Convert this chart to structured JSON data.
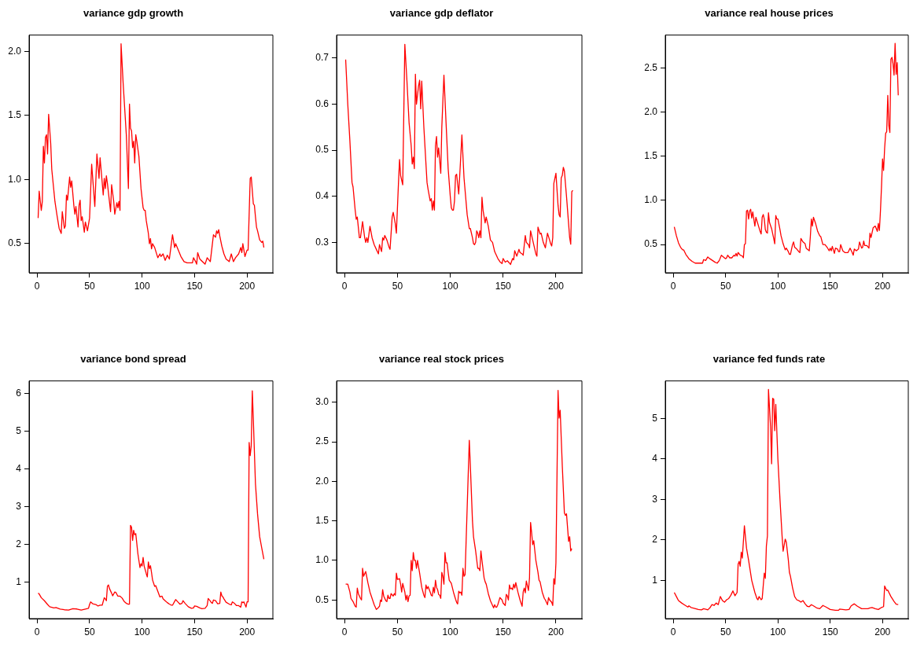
{
  "chart_data": [
    {
      "type": "line",
      "title": "variance gdp growth",
      "color": "#ff0000",
      "xlim": [
        -7.6,
        224.6
      ],
      "ylim": [
        0.273,
        2.128
      ],
      "xticks": [
        0,
        50,
        100,
        150,
        200
      ],
      "yticks": [
        0.5,
        {
          "value": 1,
          "label": "1.0"
        },
        1.5,
        {
          "value": 2,
          "label": "2.0"
        }
      ],
      "x": [
        1,
        2,
        4,
        5,
        6,
        7,
        8,
        9,
        10,
        11,
        13,
        14,
        17,
        19,
        21,
        23,
        24,
        26,
        27,
        28,
        29,
        31,
        32,
        33,
        35,
        36,
        37,
        39,
        40,
        41,
        42,
        43,
        45,
        46,
        48,
        50,
        52,
        55,
        57,
        59,
        60,
        62,
        63,
        64,
        65,
        66,
        67,
        70,
        71,
        73,
        74,
        76,
        77,
        78,
        79,
        80,
        82,
        85,
        87,
        88,
        89,
        90,
        91,
        92,
        93,
        94,
        95,
        97,
        99,
        101,
        102,
        103,
        104,
        106,
        107,
        108,
        109,
        110,
        112,
        115,
        117,
        118,
        120,
        122,
        124,
        126,
        129,
        131,
        132,
        135,
        137,
        140,
        143,
        148,
        149,
        151,
        152,
        153,
        155,
        160,
        162,
        165,
        168,
        170,
        171,
        172,
        173,
        174,
        176,
        178,
        180,
        183,
        185,
        187,
        189,
        192,
        194,
        195,
        196,
        198,
        200,
        201,
        203,
        204,
        206,
        207,
        208,
        209,
        210,
        212,
        214,
        215,
        216
      ],
      "values": [
        0.7,
        0.91,
        0.76,
        0.83,
        1.26,
        1.13,
        1.33,
        1.35,
        1.2,
        1.51,
        1.28,
        1.08,
        0.83,
        0.72,
        0.62,
        0.58,
        0.75,
        0.62,
        0.64,
        0.88,
        0.84,
        1.02,
        0.94,
        0.99,
        0.8,
        0.73,
        0.79,
        0.63,
        0.8,
        0.84,
        0.68,
        0.71,
        0.59,
        0.67,
        0.6,
        0.7,
        1.12,
        0.79,
        1.2,
        1.01,
        1.17,
        0.98,
        0.88,
        1.01,
        0.93,
        1.03,
        0.97,
        0.75,
        0.96,
        0.83,
        0.73,
        0.82,
        0.78,
        0.83,
        0.76,
        2.06,
        1.75,
        1.35,
        0.93,
        1.59,
        1.4,
        1.38,
        1.25,
        1.3,
        1.13,
        1.35,
        1.3,
        1.18,
        0.93,
        0.78,
        0.76,
        0.76,
        0.68,
        0.58,
        0.5,
        0.54,
        0.46,
        0.5,
        0.47,
        0.39,
        0.42,
        0.4,
        0.42,
        0.37,
        0.41,
        0.38,
        0.57,
        0.47,
        0.5,
        0.44,
        0.4,
        0.36,
        0.35,
        0.35,
        0.39,
        0.36,
        0.34,
        0.43,
        0.38,
        0.34,
        0.39,
        0.36,
        0.57,
        0.55,
        0.6,
        0.58,
        0.61,
        0.56,
        0.48,
        0.42,
        0.38,
        0.36,
        0.42,
        0.36,
        0.39,
        0.42,
        0.47,
        0.43,
        0.5,
        0.4,
        0.45,
        0.45,
        1.01,
        1.02,
        0.81,
        0.8,
        0.71,
        0.63,
        0.6,
        0.53,
        0.51,
        0.52,
        0.47
      ]
    },
    {
      "type": "line",
      "title": "variance gdp deflator",
      "color": "#ff0000",
      "xlim": [
        -7.6,
        224.6
      ],
      "ylim": [
        0.234,
        0.75
      ],
      "xticks": [
        0,
        50,
        100,
        150,
        200
      ],
      "yticks": [
        0.3,
        0.4,
        0.5,
        0.6,
        0.7
      ],
      "x": [
        1,
        3,
        5,
        7,
        8,
        10,
        11,
        12,
        14,
        15,
        17,
        19,
        20,
        21,
        22,
        24,
        26,
        28,
        30,
        32,
        33,
        35,
        36,
        37,
        38,
        40,
        42,
        43,
        45,
        46,
        48,
        49,
        51,
        52,
        53,
        55,
        57,
        59,
        61,
        63,
        64,
        65,
        66,
        67,
        68,
        70,
        71,
        72,
        73,
        75,
        77,
        78,
        79,
        81,
        82,
        83,
        84,
        85,
        86,
        87,
        88,
        89,
        91,
        92,
        94,
        96,
        98,
        100,
        101,
        102,
        103,
        104,
        105,
        106,
        108,
        110,
        111,
        113,
        116,
        118,
        119,
        121,
        122,
        123,
        124,
        125,
        126,
        127,
        128,
        129,
        130,
        131,
        133,
        134,
        136,
        138,
        140,
        142,
        145,
        147,
        149,
        150,
        152,
        154,
        156,
        157,
        159,
        160,
        161,
        163,
        165,
        166,
        168,
        169,
        171,
        172,
        174,
        175,
        176,
        178,
        180,
        181,
        182,
        183,
        185,
        186,
        188,
        190,
        192,
        194,
        195,
        196,
        197,
        198,
        200,
        202,
        203,
        204,
        205,
        206,
        207,
        208,
        210,
        212,
        213,
        214,
        215,
        216
      ],
      "values": [
        0.697,
        0.6,
        0.52,
        0.43,
        0.42,
        0.37,
        0.35,
        0.355,
        0.31,
        0.31,
        0.345,
        0.31,
        0.3,
        0.31,
        0.3,
        0.335,
        0.31,
        0.295,
        0.285,
        0.275,
        0.295,
        0.28,
        0.31,
        0.305,
        0.315,
        0.305,
        0.29,
        0.285,
        0.355,
        0.365,
        0.34,
        0.32,
        0.43,
        0.48,
        0.445,
        0.425,
        0.73,
        0.65,
        0.56,
        0.51,
        0.47,
        0.485,
        0.46,
        0.665,
        0.6,
        0.64,
        0.652,
        0.59,
        0.65,
        0.55,
        0.47,
        0.43,
        0.415,
        0.39,
        0.395,
        0.37,
        0.39,
        0.37,
        0.51,
        0.53,
        0.485,
        0.505,
        0.45,
        0.55,
        0.663,
        0.56,
        0.46,
        0.4,
        0.375,
        0.37,
        0.37,
        0.39,
        0.445,
        0.448,
        0.405,
        0.49,
        0.533,
        0.44,
        0.36,
        0.33,
        0.33,
        0.31,
        0.297,
        0.295,
        0.3,
        0.325,
        0.32,
        0.31,
        0.325,
        0.31,
        0.398,
        0.37,
        0.342,
        0.355,
        0.335,
        0.305,
        0.3,
        0.28,
        0.265,
        0.258,
        0.254,
        0.265,
        0.257,
        0.26,
        0.255,
        0.252,
        0.265,
        0.262,
        0.282,
        0.27,
        0.285,
        0.278,
        0.275,
        0.272,
        0.315,
        0.3,
        0.295,
        0.288,
        0.325,
        0.305,
        0.285,
        0.275,
        0.27,
        0.333,
        0.318,
        0.32,
        0.3,
        0.288,
        0.32,
        0.305,
        0.297,
        0.292,
        0.31,
        0.428,
        0.45,
        0.38,
        0.36,
        0.355,
        0.44,
        0.445,
        0.463,
        0.455,
        0.4,
        0.34,
        0.31,
        0.296,
        0.41,
        0.413
      ]
    },
    {
      "type": "line",
      "title": "variance real house prices",
      "color": "#ff0000",
      "xlim": [
        -7.6,
        224.6
      ],
      "ylim": [
        0.181,
        2.873
      ],
      "xticks": [
        0,
        50,
        100,
        150,
        200
      ],
      "yticks": [
        0.5,
        {
          "value": 1,
          "label": "1.0"
        },
        1.5,
        {
          "value": 2,
          "label": "2.0"
        },
        2.5
      ],
      "x": [
        1,
        3,
        5,
        7,
        9,
        10,
        12,
        15,
        18,
        21,
        24,
        27,
        28,
        29,
        31,
        32,
        33,
        35,
        40,
        42,
        44,
        46,
        48,
        50,
        51,
        52,
        54,
        56,
        58,
        59,
        60,
        61,
        62,
        64,
        66,
        67,
        68,
        69,
        70,
        71,
        72,
        73,
        74,
        75,
        76,
        78,
        79,
        81,
        83,
        84,
        85,
        86,
        87,
        88,
        89,
        90,
        91,
        92,
        94,
        96,
        97,
        98,
        99,
        100,
        102,
        103,
        105,
        107,
        108,
        110,
        111,
        112,
        114,
        115,
        116,
        118,
        120,
        121,
        122,
        124,
        126,
        127,
        129,
        130,
        131,
        132,
        133,
        134,
        136,
        138,
        140,
        141,
        143,
        145,
        147,
        149,
        150,
        151,
        152,
        154,
        155,
        157,
        158,
        159,
        160,
        162,
        164,
        167,
        169,
        171,
        172,
        173,
        175,
        177,
        178,
        180,
        181,
        182,
        183,
        185,
        187,
        188,
        189,
        191,
        193,
        195,
        196,
        197,
        198,
        199,
        200,
        201,
        202,
        203,
        204,
        205,
        206,
        207,
        208,
        209,
        210,
        211,
        212,
        213,
        214,
        215
      ],
      "values": [
        0.7,
        0.6,
        0.52,
        0.47,
        0.44,
        0.44,
        0.39,
        0.34,
        0.31,
        0.29,
        0.29,
        0.29,
        0.29,
        0.33,
        0.32,
        0.34,
        0.36,
        0.34,
        0.3,
        0.29,
        0.32,
        0.38,
        0.36,
        0.34,
        0.35,
        0.38,
        0.35,
        0.35,
        0.38,
        0.37,
        0.4,
        0.37,
        0.41,
        0.38,
        0.37,
        0.35,
        0.5,
        0.51,
        0.88,
        0.89,
        0.79,
        0.88,
        0.9,
        0.8,
        0.87,
        0.71,
        0.81,
        0.73,
        0.65,
        0.62,
        0.81,
        0.84,
        0.79,
        0.67,
        0.64,
        0.63,
        0.86,
        0.75,
        0.68,
        0.57,
        0.51,
        0.83,
        0.79,
        0.79,
        0.67,
        0.6,
        0.51,
        0.44,
        0.46,
        0.42,
        0.39,
        0.39,
        0.5,
        0.53,
        0.47,
        0.45,
        0.42,
        0.41,
        0.57,
        0.53,
        0.51,
        0.46,
        0.44,
        0.43,
        0.59,
        0.79,
        0.71,
        0.81,
        0.74,
        0.65,
        0.6,
        0.59,
        0.5,
        0.5,
        0.47,
        0.43,
        0.46,
        0.43,
        0.48,
        0.4,
        0.46,
        0.45,
        0.42,
        0.42,
        0.5,
        0.43,
        0.41,
        0.41,
        0.46,
        0.41,
        0.38,
        0.45,
        0.43,
        0.45,
        0.53,
        0.46,
        0.47,
        0.54,
        0.49,
        0.49,
        0.46,
        0.63,
        0.58,
        0.69,
        0.71,
        0.65,
        0.74,
        0.66,
        0.88,
        1.15,
        1.47,
        1.34,
        1.59,
        1.76,
        1.78,
        2.19,
        1.85,
        1.77,
        2.6,
        2.62,
        2.55,
        2.42,
        2.78,
        2.43,
        2.56,
        2.19
      ]
    },
    {
      "type": "line",
      "title": "variance bond spread",
      "color": "#ff0000",
      "xlim": [
        -7.6,
        224.6
      ],
      "ylim": [
        0.025,
        6.33
      ],
      "xticks": [
        0,
        50,
        100,
        150,
        200
      ],
      "yticks": [
        1,
        2,
        3,
        4,
        5,
        6
      ],
      "x": [
        1,
        2,
        4,
        7,
        10,
        12,
        16,
        18,
        22,
        26,
        30,
        34,
        38,
        42,
        46,
        49,
        50,
        51,
        53,
        56,
        58,
        60,
        62,
        64,
        65,
        66,
        67,
        68,
        69,
        71,
        72,
        74,
        75,
        77,
        79,
        81,
        83,
        85,
        87,
        88,
        89,
        90,
        91,
        92,
        93,
        94,
        96,
        98,
        99,
        100,
        101,
        102,
        104,
        105,
        106,
        107,
        108,
        109,
        110,
        112,
        113,
        115,
        117,
        119,
        120,
        122,
        124,
        126,
        128,
        129,
        131,
        132,
        134,
        136,
        138,
        139,
        141,
        144,
        147,
        149,
        150,
        152,
        155,
        157,
        160,
        162,
        163,
        165,
        166,
        167,
        168,
        170,
        172,
        174,
        175,
        176,
        177,
        178,
        180,
        183,
        185,
        186,
        188,
        190,
        192,
        194,
        195,
        196,
        197,
        199,
        200,
        201,
        202,
        203,
        204,
        205,
        206,
        208,
        210,
        212,
        214,
        216
      ],
      "values": [
        0.7,
        0.68,
        0.58,
        0.5,
        0.4,
        0.34,
        0.31,
        0.32,
        0.28,
        0.26,
        0.25,
        0.29,
        0.28,
        0.25,
        0.28,
        0.3,
        0.4,
        0.47,
        0.42,
        0.4,
        0.36,
        0.38,
        0.38,
        0.58,
        0.55,
        0.5,
        0.88,
        0.92,
        0.82,
        0.7,
        0.63,
        0.73,
        0.72,
        0.62,
        0.62,
        0.57,
        0.48,
        0.43,
        0.41,
        0.41,
        2.5,
        2.45,
        2.1,
        2.37,
        2.25,
        2.28,
        1.75,
        1.38,
        1.48,
        1.42,
        1.65,
        1.42,
        1.22,
        1.13,
        1.53,
        1.35,
        1.43,
        1.25,
        1.05,
        0.88,
        0.9,
        0.75,
        0.6,
        0.62,
        0.55,
        0.5,
        0.45,
        0.41,
        0.38,
        0.38,
        0.48,
        0.53,
        0.47,
        0.41,
        0.43,
        0.5,
        0.43,
        0.34,
        0.3,
        0.31,
        0.36,
        0.35,
        0.31,
        0.29,
        0.3,
        0.37,
        0.56,
        0.49,
        0.45,
        0.43,
        0.52,
        0.5,
        0.42,
        0.43,
        0.73,
        0.63,
        0.6,
        0.55,
        0.46,
        0.41,
        0.39,
        0.47,
        0.43,
        0.37,
        0.37,
        0.33,
        0.47,
        0.45,
        0.47,
        0.33,
        0.47,
        0.47,
        4.7,
        4.35,
        4.62,
        6.07,
        5.3,
        3.6,
        2.8,
        2.2,
        1.9,
        1.6
      ]
    },
    {
      "type": "line",
      "title": "variance real stock prices",
      "color": "#ff0000",
      "xlim": [
        -7.6,
        224.6
      ],
      "ylim": [
        0.264,
        3.27
      ],
      "xticks": [
        0,
        50,
        100,
        150,
        200
      ],
      "yticks": [
        0.5,
        {
          "value": 1,
          "label": "1.0"
        },
        1.5,
        {
          "value": 2,
          "label": "2.0"
        },
        2.5,
        {
          "value": 3,
          "label": "3.0"
        }
      ],
      "x": [
        1,
        3,
        5,
        6,
        8,
        10,
        11,
        12,
        13,
        15,
        16,
        17,
        18,
        20,
        22,
        24,
        26,
        28,
        30,
        31,
        33,
        34,
        35,
        36,
        37,
        39,
        40,
        41,
        42,
        43,
        44,
        46,
        47,
        48,
        49,
        50,
        52,
        53,
        54,
        55,
        57,
        58,
        59,
        60,
        61,
        62,
        63,
        64,
        65,
        66,
        67,
        68,
        69,
        71,
        73,
        75,
        76,
        77,
        78,
        79,
        81,
        82,
        83,
        84,
        85,
        86,
        87,
        88,
        89,
        90,
        91,
        92,
        93,
        94,
        95,
        96,
        97,
        98,
        99,
        101,
        103,
        105,
        106,
        107,
        108,
        109,
        110,
        111,
        112,
        113,
        114,
        118,
        119,
        121,
        122,
        124,
        126,
        127,
        128,
        129,
        130,
        132,
        133,
        134,
        136,
        138,
        140,
        141,
        142,
        143,
        144,
        145,
        147,
        149,
        150,
        152,
        153,
        154,
        155,
        156,
        157,
        158,
        159,
        160,
        161,
        162,
        164,
        166,
        168,
        169,
        170,
        171,
        172,
        173,
        174,
        175,
        176,
        177,
        178,
        179,
        181,
        183,
        184,
        185,
        187,
        189,
        190,
        192,
        193,
        194,
        196,
        197,
        198,
        199,
        200,
        202,
        203,
        204,
        206,
        208,
        209,
        210,
        212,
        213,
        214,
        215
      ],
      "values": [
        0.7,
        0.7,
        0.6,
        0.52,
        0.48,
        0.42,
        0.41,
        0.65,
        0.58,
        0.52,
        0.5,
        0.9,
        0.8,
        0.86,
        0.72,
        0.6,
        0.52,
        0.44,
        0.38,
        0.39,
        0.42,
        0.5,
        0.48,
        0.63,
        0.55,
        0.49,
        0.48,
        0.56,
        0.52,
        0.52,
        0.58,
        0.55,
        0.58,
        0.56,
        0.84,
        0.76,
        0.77,
        0.7,
        0.6,
        0.71,
        0.6,
        0.5,
        0.56,
        0.48,
        0.55,
        0.56,
        1.0,
        0.87,
        1.1,
        1.0,
        1.0,
        0.9,
        1.0,
        0.84,
        0.66,
        0.56,
        0.53,
        0.69,
        0.64,
        0.67,
        0.6,
        0.56,
        0.55,
        0.66,
        0.59,
        0.75,
        0.66,
        0.63,
        0.57,
        0.56,
        0.52,
        0.85,
        0.8,
        0.7,
        1.1,
        0.97,
        0.97,
        0.85,
        0.75,
        0.71,
        0.6,
        0.51,
        0.47,
        0.45,
        0.61,
        0.59,
        0.6,
        0.56,
        0.9,
        0.8,
        0.82,
        2.52,
        2.2,
        1.5,
        1.3,
        1.12,
        0.9,
        0.9,
        0.87,
        1.12,
        1.0,
        0.78,
        0.73,
        0.7,
        0.58,
        0.49,
        0.43,
        0.4,
        0.44,
        0.41,
        0.41,
        0.44,
        0.53,
        0.5,
        0.46,
        0.43,
        0.57,
        0.55,
        0.5,
        0.69,
        0.64,
        0.65,
        0.63,
        0.7,
        0.65,
        0.72,
        0.6,
        0.5,
        0.42,
        0.6,
        0.65,
        0.59,
        0.74,
        0.68,
        0.62,
        0.78,
        1.48,
        1.35,
        1.2,
        1.25,
        1.0,
        0.85,
        0.75,
        0.73,
        0.6,
        0.52,
        0.5,
        0.44,
        0.53,
        0.5,
        0.47,
        0.43,
        0.77,
        0.7,
        0.97,
        3.15,
        2.8,
        2.9,
        2.2,
        1.6,
        1.57,
        1.59,
        1.24,
        1.3,
        1.12,
        1.15
      ]
    },
    {
      "type": "line",
      "title": "variance fed funds rate",
      "color": "#ff0000",
      "xlim": [
        -7.6,
        224.6
      ],
      "ylim": [
        0.054,
        5.93
      ],
      "xticks": [
        0,
        50,
        100,
        150,
        200
      ],
      "yticks": [
        1,
        2,
        3,
        4,
        5
      ],
      "x": [
        1,
        3,
        5,
        8,
        11,
        14,
        15,
        17,
        20,
        24,
        27,
        29,
        32,
        33,
        35,
        37,
        39,
        41,
        43,
        45,
        47,
        49,
        51,
        53,
        55,
        57,
        59,
        61,
        62,
        63,
        64,
        65,
        66,
        68,
        70,
        72,
        75,
        78,
        80,
        81,
        82,
        84,
        85,
        87,
        88,
        89,
        90,
        91,
        93,
        94,
        95,
        96,
        97,
        98,
        100,
        102,
        104,
        105,
        107,
        108,
        110,
        111,
        112,
        114,
        116,
        118,
        120,
        122,
        124,
        126,
        128,
        130,
        132,
        134,
        137,
        140,
        143,
        146,
        150,
        155,
        158,
        159,
        162,
        165,
        168,
        170,
        173,
        176,
        180,
        184,
        186,
        188,
        190,
        193,
        196,
        199,
        201,
        202,
        204,
        205,
        208,
        211,
        213,
        215
      ],
      "values": [
        0.7,
        0.6,
        0.5,
        0.44,
        0.39,
        0.34,
        0.37,
        0.33,
        0.31,
        0.28,
        0.27,
        0.3,
        0.28,
        0.27,
        0.32,
        0.4,
        0.38,
        0.44,
        0.4,
        0.6,
        0.5,
        0.46,
        0.52,
        0.55,
        0.63,
        0.74,
        0.62,
        0.7,
        1.4,
        1.47,
        1.35,
        1.7,
        1.55,
        2.35,
        1.8,
        1.5,
        1.0,
        0.7,
        0.55,
        0.52,
        0.6,
        0.52,
        0.55,
        1.18,
        1.05,
        1.85,
        2.1,
        5.72,
        4.8,
        3.88,
        5.5,
        5.48,
        4.7,
        5.35,
        4.0,
        3.0,
        2.1,
        1.72,
        2.02,
        1.95,
        1.5,
        1.2,
        1.1,
        0.82,
        0.6,
        0.52,
        0.5,
        0.46,
        0.5,
        0.42,
        0.36,
        0.35,
        0.4,
        0.37,
        0.32,
        0.3,
        0.38,
        0.34,
        0.28,
        0.26,
        0.26,
        0.29,
        0.28,
        0.27,
        0.28,
        0.37,
        0.42,
        0.36,
        0.3,
        0.3,
        0.3,
        0.32,
        0.33,
        0.3,
        0.28,
        0.33,
        0.35,
        0.86,
        0.75,
        0.76,
        0.6,
        0.48,
        0.41,
        0.4
      ]
    }
  ]
}
